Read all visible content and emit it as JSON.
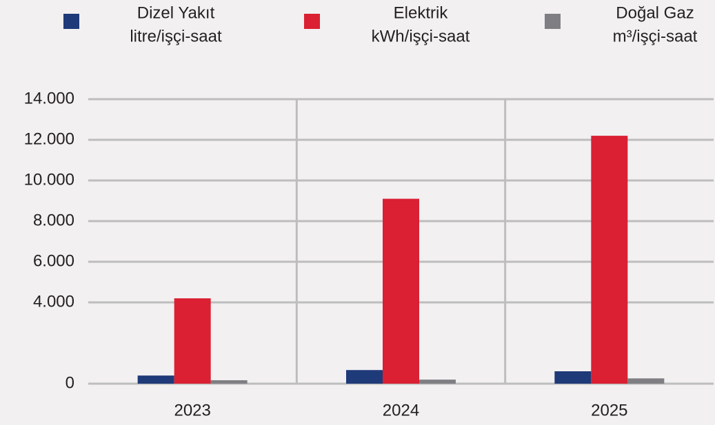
{
  "chart_data": {
    "type": "bar",
    "categories": [
      "2023",
      "2024",
      "2025"
    ],
    "series": [
      {
        "name": "Dizel Yakıt",
        "unit": "litre/işçi-saat",
        "color": "#1f3a78",
        "values": [
          400,
          670,
          610
        ]
      },
      {
        "name": "Elektrik",
        "unit": "kWh/işçi-saat",
        "color": "#da2032",
        "values": [
          4200,
          9100,
          12200
        ]
      },
      {
        "name": "Doğal Gaz",
        "unit": "m³/işçi-saat",
        "color": "#7f7f83",
        "values": [
          170,
          200,
          260
        ]
      }
    ],
    "ylim": [
      0,
      14000
    ],
    "yticks": [
      0,
      {
        "value": 4000,
        "label": "4.000"
      },
      {
        "value": 6000,
        "label": "6.000"
      },
      {
        "value": 8000,
        "label": "8.000"
      },
      {
        "value": 10000,
        "label": "10.000"
      },
      {
        "value": 12000,
        "label": "12.000"
      },
      {
        "value": 14000,
        "label": "14.000"
      }
    ],
    "grid": true
  }
}
